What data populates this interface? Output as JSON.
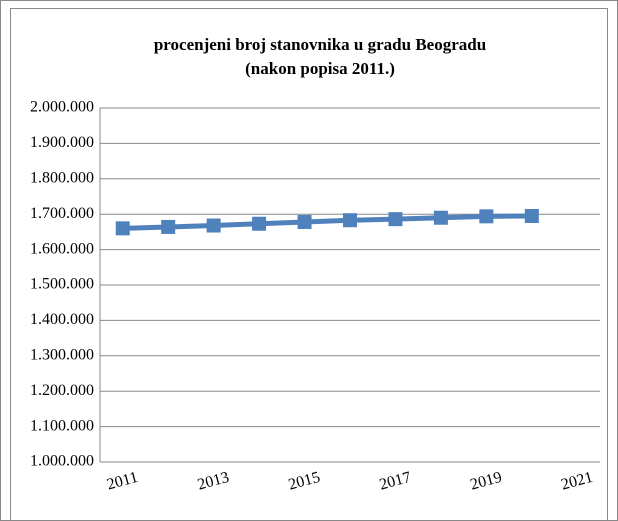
{
  "chart_data": {
    "type": "line",
    "title": [
      "procenjeni broj stanovnika u gradu Beogradu",
      "(nakon popisa 2011.)"
    ],
    "categories": [
      "2011",
      null,
      "2013",
      null,
      "2015",
      null,
      "2017",
      null,
      "2019",
      null,
      "2021"
    ],
    "series": [
      {
        "name": "procenjeni broj stanovnika",
        "color": "#4f81bd",
        "values": [
          1660000,
          1664000,
          1668000,
          1673000,
          1678000,
          1683000,
          1686000,
          1690000,
          1694000,
          1695000,
          null
        ]
      }
    ],
    "ylim": [
      1000000,
      2000000
    ],
    "yticks": [
      {
        "value": 1000000,
        "label": "1.000.000"
      },
      {
        "value": 1100000,
        "label": "1.100.000"
      },
      {
        "value": 1200000,
        "label": "1.200.000"
      },
      {
        "value": 1300000,
        "label": "1.300.000"
      },
      {
        "value": 1400000,
        "label": "1.400.000"
      },
      {
        "value": 1500000,
        "label": "1.500.000"
      },
      {
        "value": 1600000,
        "label": "1.600.000"
      },
      {
        "value": 1700000,
        "label": "1.700.000"
      },
      {
        "value": 1800000,
        "label": "1.800.000"
      },
      {
        "value": 1900000,
        "label": "1.900.000"
      },
      {
        "value": 2000000,
        "label": "2.000.000"
      }
    ],
    "grid": true
  }
}
